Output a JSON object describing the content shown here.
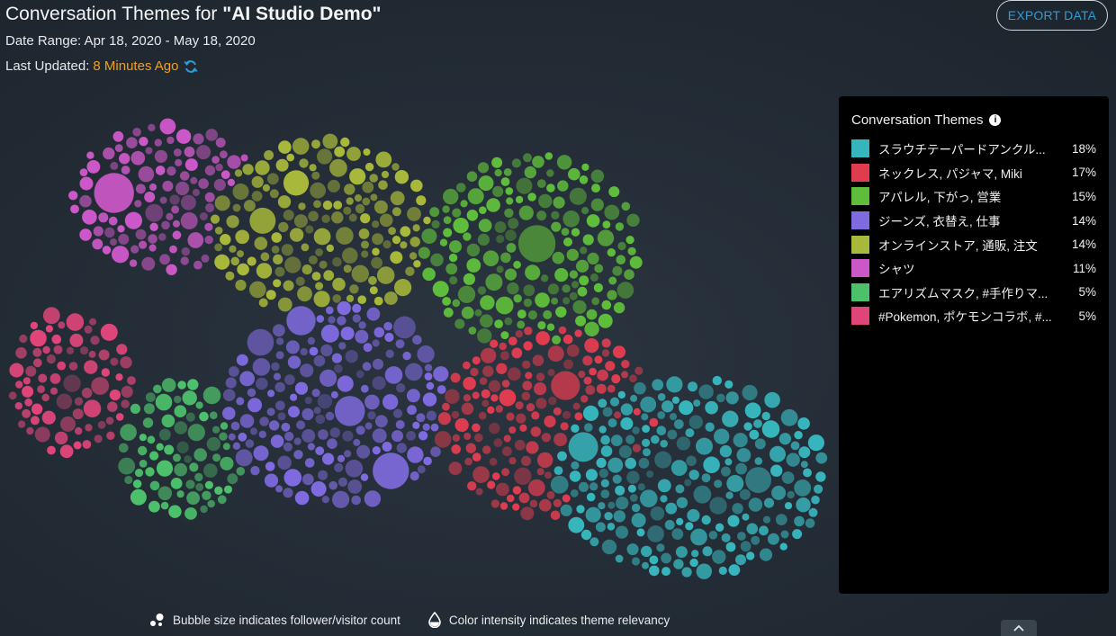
{
  "header": {
    "title_prefix": "Conversation Themes for ",
    "title_project": "\"AI Studio Demo\"",
    "date_range": "Date Range: Apr 18, 2020 - May 18, 2020",
    "last_updated_label": "Last Updated:",
    "last_updated_value": "8 Minutes Ago"
  },
  "toolbar": {
    "export_label": "EXPORT DATA"
  },
  "legend": {
    "title": "Conversation Themes",
    "items": [
      {
        "label": "スラウチテーパードアンクル...",
        "percent": "18%",
        "color": "#37b5bd"
      },
      {
        "label": "ネックレス, パジャマ, Miki",
        "percent": "17%",
        "color": "#e03c50"
      },
      {
        "label": "アパレル, 下がっ, 営業",
        "percent": "15%",
        "color": "#5ebd3b"
      },
      {
        "label": "ジーンズ, 衣替え, 仕事",
        "percent": "14%",
        "color": "#7f6ae0"
      },
      {
        "label": "オンラインストア, 通販, 注文",
        "percent": "14%",
        "color": "#a8b83a"
      },
      {
        "label": "シャツ",
        "percent": "11%",
        "color": "#cc57c8"
      },
      {
        "label": "エアリズムマスク, #手作りマ...",
        "percent": "5%",
        "color": "#4cc06a"
      },
      {
        "label": "#Pokemon, ポケモンコラボ, #...",
        "percent": "5%",
        "color": "#e0457a"
      }
    ]
  },
  "footer": {
    "size_note": "Bubble size indicates follower/visitor count",
    "color_note": "Color intensity indicates theme relevancy"
  },
  "icons": {
    "refresh": "refresh-icon",
    "info": "info-icon",
    "bubbles": "bubbles-icon",
    "drop": "drop-icon",
    "chevron": "chevron-up-icon"
  }
}
